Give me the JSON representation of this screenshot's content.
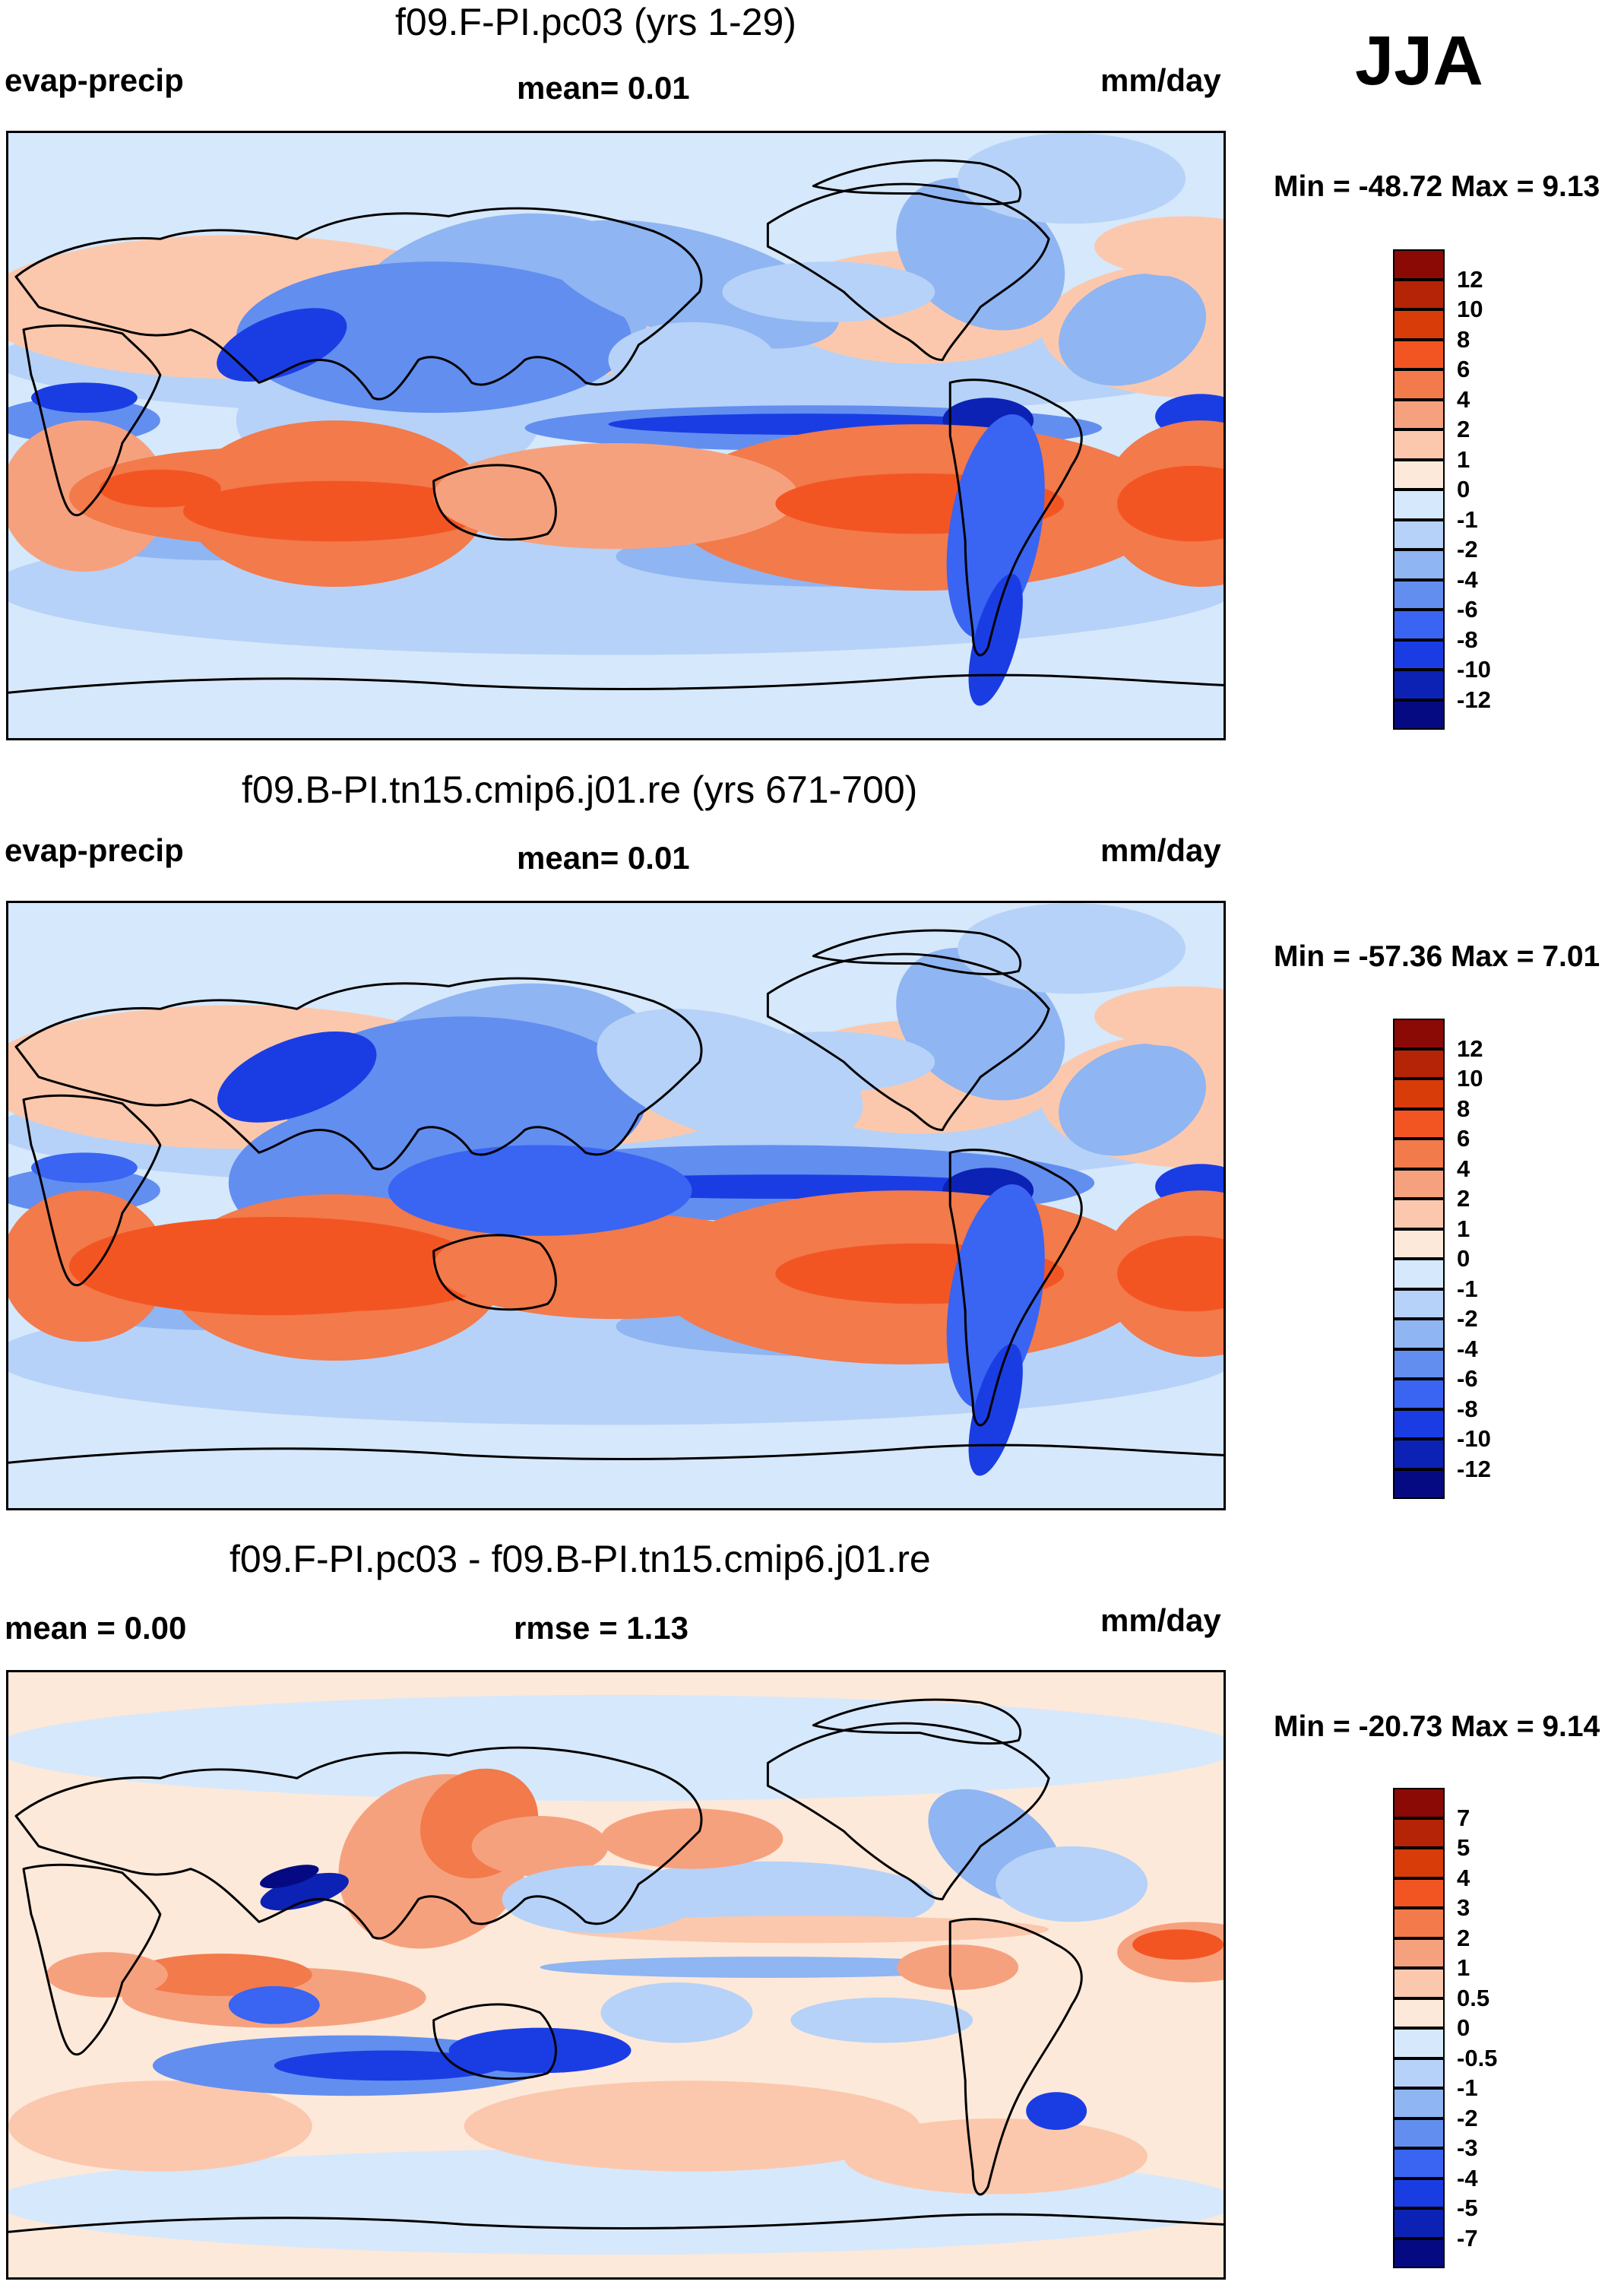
{
  "season": "JJA",
  "chart_data": [
    {
      "type": "heatmap",
      "panel": "top",
      "title": "f09.F-PI.pc03 (yrs 1-29)",
      "left_label": "evap-precip",
      "center_label": "mean=   0.01",
      "units": "mm/day",
      "minmax": "Min = -48.72 Max =   9.13",
      "levels": [
        "12",
        "10",
        "8",
        "6",
        "4",
        "2",
        "1",
        "0",
        "-1",
        "-2",
        "-4",
        "-6",
        "-8",
        "-10",
        "-12"
      ],
      "colors": [
        "#8b0a06",
        "#b52406",
        "#d83c09",
        "#f35522",
        "#f27a4b",
        "#f6a17e",
        "#fbc8ad",
        "#fde9da",
        "#d6e8fb",
        "#b6d2f8",
        "#8fb5f2",
        "#628ef0",
        "#3a64f2",
        "#1a3de3",
        "#0c22b5",
        "#060a82"
      ]
    },
    {
      "type": "heatmap",
      "panel": "middle",
      "title": "f09.B-PI.tn15.cmip6.j01.re (yrs 671-700)",
      "left_label": "evap-precip",
      "center_label": "mean=   0.01",
      "units": "mm/day",
      "minmax": "Min = -57.36 Max =   7.01",
      "levels": [
        "12",
        "10",
        "8",
        "6",
        "4",
        "2",
        "1",
        "0",
        "-1",
        "-2",
        "-4",
        "-6",
        "-8",
        "-10",
        "-12"
      ],
      "colors": [
        "#8b0a06",
        "#b52406",
        "#d83c09",
        "#f35522",
        "#f27a4b",
        "#f6a17e",
        "#fbc8ad",
        "#fde9da",
        "#d6e8fb",
        "#b6d2f8",
        "#8fb5f2",
        "#628ef0",
        "#3a64f2",
        "#1a3de3",
        "#0c22b5",
        "#060a82"
      ]
    },
    {
      "type": "heatmap",
      "panel": "bottom",
      "title": "f09.F-PI.pc03 - f09.B-PI.tn15.cmip6.j01.re",
      "left_label": "mean =    0.00",
      "center_label": "rmse =    1.13",
      "units": "mm/day",
      "minmax": "Min = -20.73 Max =   9.14",
      "levels": [
        "7",
        "5",
        "4",
        "3",
        "2",
        "1",
        "0.5",
        "0",
        "-0.5",
        "-1",
        "-2",
        "-3",
        "-4",
        "-5",
        "-7"
      ],
      "colors": [
        "#8b0a06",
        "#b52406",
        "#d83c09",
        "#f35522",
        "#f27a4b",
        "#f6a17e",
        "#fbc8ad",
        "#fde9da",
        "#d6e8fb",
        "#b6d2f8",
        "#8fb5f2",
        "#628ef0",
        "#3a64f2",
        "#1a3de3",
        "#0c22b5",
        "#060a82"
      ]
    }
  ]
}
